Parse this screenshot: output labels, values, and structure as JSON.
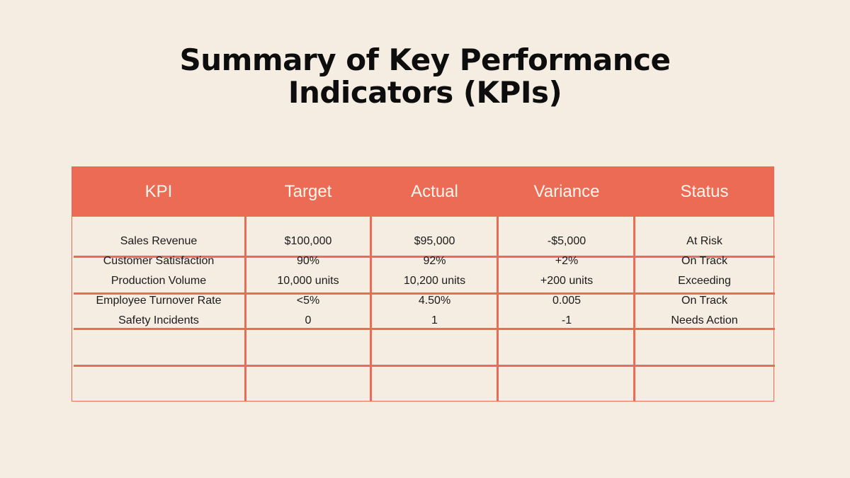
{
  "title": {
    "line1": "Summary of Key Performance",
    "line2": "Indicators (KPIs)"
  },
  "table": {
    "headers": [
      "KPI",
      "Target",
      "Actual",
      "Variance",
      "Status"
    ],
    "rows": [
      [
        "Sales Revenue",
        "$100,000",
        "$95,000",
        "-$5,000",
        "At Risk"
      ],
      [
        "Customer Satisfaction",
        "90%",
        "92%",
        "+2%",
        "On Track"
      ],
      [
        "Production Volume",
        "10,000 units",
        "10,200 units",
        "+200 units",
        "Exceeding"
      ],
      [
        "Employee Turnover Rate",
        "<5%",
        "4.50%",
        "0.005",
        "On Track"
      ],
      [
        "Safety Incidents",
        "0",
        "1",
        "-1",
        "Needs Action"
      ]
    ]
  },
  "colors": {
    "background": "#f5ece2",
    "accent": "#ec6b55",
    "header_text": "#fff6ee",
    "body_text": "#1b1b1b"
  }
}
